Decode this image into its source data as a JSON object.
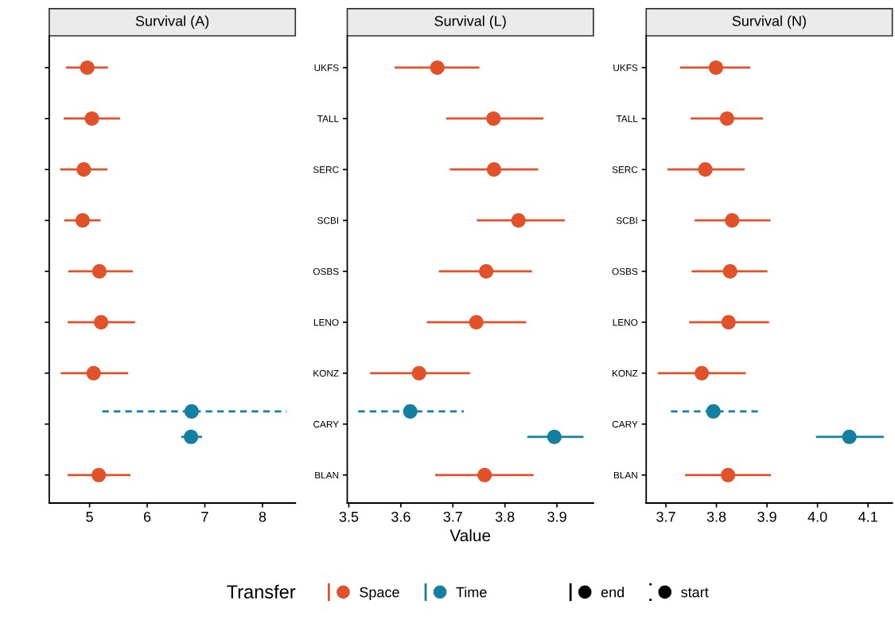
{
  "chart_data": [
    {
      "type": "scatter",
      "orientation": "horizontal",
      "title": "Survival (A)",
      "categories": [
        null,
        null,
        null,
        null,
        null,
        null,
        null,
        null,
        null
      ],
      "tick_labels": "x",
      "xlim": [
        4.3,
        8.57
      ],
      "xticks": [
        5,
        6,
        7,
        8
      ],
      "marker": "circle",
      "grid": false,
      "legend": "bottom",
      "legend_title": "Transfer",
      "series": [
        {
          "name": "Space",
          "color": "#e1522a",
          "line_style": "solid",
          "values": [
            4.96,
            5.04,
            4.9,
            4.88,
            5.17,
            5.2,
            5.07,
            null,
            5.16
          ],
          "errors": [
            [
              4.59,
              5.32
            ],
            [
              4.55,
              5.53
            ],
            [
              4.49,
              5.31
            ],
            [
              4.56,
              5.19
            ],
            [
              4.63,
              5.75
            ],
            [
              4.62,
              5.79
            ],
            [
              4.5,
              5.67
            ],
            null,
            [
              4.62,
              5.71
            ]
          ]
        },
        {
          "name": "Time",
          "color": "#1380a1",
          "line_style": "dashed",
          "values": [
            null,
            null,
            null,
            null,
            null,
            null,
            null,
            6.77,
            null
          ],
          "errors": [
            null,
            null,
            null,
            null,
            null,
            null,
            null,
            [
              5.22,
              8.42
            ],
            null
          ]
        },
        {
          "color": "#1380a1",
          "line_style": "solid",
          "values": [
            null,
            null,
            null,
            null,
            null,
            null,
            null,
            6.76,
            null
          ],
          "errors": [
            null,
            null,
            null,
            null,
            null,
            null,
            null,
            [
              6.59,
              6.95
            ],
            null
          ]
        },
        {
          "name": "end",
          "color": "#000000",
          "line_style": "solid",
          "values": [
            null,
            null,
            null,
            null,
            null,
            null,
            null,
            null,
            null
          ]
        },
        {
          "name": "start",
          "color": "#000000",
          "line_style": "dotted",
          "values": [
            null,
            null,
            null,
            null,
            null,
            null,
            null,
            null,
            null
          ]
        }
      ]
    },
    {
      "type": "scatter",
      "orientation": "horizontal",
      "title": "Survival (L)",
      "xlabel": "Value",
      "categories": [
        "UKFS",
        "TALL",
        "SERC",
        "SCBI",
        "OSBS",
        "LENO",
        "KONZ",
        "CARY",
        "BLAN"
      ],
      "xlim": [
        3.497,
        3.97
      ],
      "xticks": [
        3.5,
        3.6,
        3.7,
        3.8,
        3.9
      ],
      "marker": "circle",
      "grid": false,
      "series": [
        {
          "color": "#e1522a",
          "line_style": "solid",
          "values": [
            3.67,
            3.778,
            3.779,
            3.826,
            3.764,
            3.745,
            3.635,
            null,
            3.761
          ],
          "errors": [
            [
              3.588,
              3.751
            ],
            [
              3.687,
              3.874
            ],
            [
              3.694,
              3.864
            ],
            [
              3.746,
              3.915
            ],
            [
              3.673,
              3.852
            ],
            [
              3.65,
              3.841
            ],
            [
              3.541,
              3.733
            ],
            null,
            [
              3.666,
              3.855
            ]
          ]
        },
        {
          "color": "#1380a1",
          "line_style": "dashed",
          "values": [
            null,
            null,
            null,
            null,
            null,
            null,
            null,
            3.618,
            null
          ],
          "errors": [
            null,
            null,
            null,
            null,
            null,
            null,
            null,
            [
              3.518,
              3.721
            ],
            null
          ]
        },
        {
          "color": "#1380a1",
          "line_style": "solid",
          "values": [
            null,
            null,
            null,
            null,
            null,
            null,
            null,
            3.895,
            null
          ],
          "errors": [
            null,
            null,
            null,
            null,
            null,
            null,
            null,
            [
              3.843,
              3.951
            ],
            null
          ]
        }
      ]
    },
    {
      "type": "scatter",
      "orientation": "horizontal",
      "title": "Survival (N)",
      "categories": [
        "UKFS",
        "TALL",
        "SERC",
        "SCBI",
        "OSBS",
        "LENO",
        "KONZ",
        "CARY",
        "BLAN"
      ],
      "xlim": [
        3.661,
        4.148
      ],
      "xticks": [
        3.7,
        3.8,
        3.9,
        {
          "value": 4.0,
          "label": "4.0"
        },
        4.1
      ],
      "marker": "circle",
      "grid": false,
      "series": [
        {
          "color": "#e1522a",
          "line_style": "solid",
          "values": [
            3.799,
            3.821,
            3.778,
            3.831,
            3.827,
            3.824,
            3.771,
            null,
            3.823
          ],
          "errors": [
            [
              3.728,
              3.867
            ],
            [
              3.749,
              3.892
            ],
            [
              3.703,
              3.856
            ],
            [
              3.757,
              3.907
            ],
            [
              3.751,
              3.901
            ],
            [
              3.746,
              3.904
            ],
            [
              3.684,
              3.858
            ],
            null,
            [
              3.738,
              3.908
            ]
          ]
        },
        {
          "color": "#1380a1",
          "line_style": "dashed",
          "values": [
            null,
            null,
            null,
            null,
            null,
            null,
            null,
            3.794,
            null
          ],
          "errors": [
            null,
            null,
            null,
            null,
            null,
            null,
            null,
            [
              3.71,
              3.882
            ],
            null
          ]
        },
        {
          "color": "#1380a1",
          "line_style": "solid",
          "values": [
            null,
            null,
            null,
            null,
            null,
            null,
            null,
            4.063,
            null
          ],
          "errors": [
            null,
            null,
            null,
            null,
            null,
            null,
            null,
            [
              3.997,
              4.131
            ],
            null
          ]
        }
      ]
    }
  ]
}
